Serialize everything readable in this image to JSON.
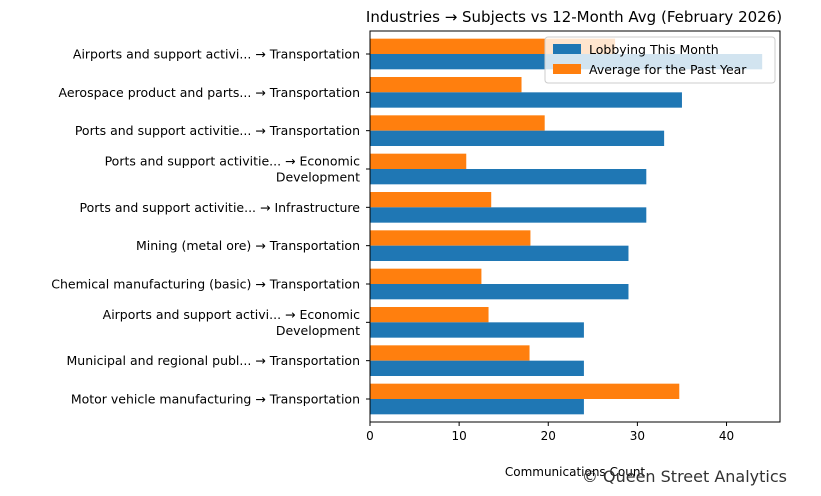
{
  "chart_data": {
    "type": "bar",
    "orientation": "horizontal",
    "title": "Industries → Subjects vs 12-Month Avg (February 2026)",
    "xlabel": "Communications Count",
    "ylabel": "",
    "xlim": [
      0,
      46
    ],
    "xticks": [
      0,
      10,
      20,
      30,
      40
    ],
    "grid": false,
    "legend_position": "top-right",
    "categories": [
      [
        "Airports and support activi... → Transportation"
      ],
      [
        "Aerospace product and parts... → Transportation"
      ],
      [
        "Ports and support activitie... → Transportation"
      ],
      [
        "Ports and support activitie... → Economic",
        "Development"
      ],
      [
        "Ports and support activitie... → Infrastructure"
      ],
      [
        "Mining (metal ore) → Transportation"
      ],
      [
        "Chemical manufacturing (basic) → Transportation"
      ],
      [
        "Airports and support activi... → Economic",
        "Development"
      ],
      [
        "Municipal and regional publ... → Transportation"
      ],
      [
        "Motor vehicle manufacturing → Transportation"
      ]
    ],
    "series": [
      {
        "name": "Lobbying This Month",
        "color": "#1f77b4",
        "values": [
          44,
          35,
          33,
          31,
          31,
          29,
          29,
          24,
          24,
          24
        ]
      },
      {
        "name": "Average for the Past Year",
        "color": "#ff7f0e",
        "values": [
          27.5,
          17,
          19.6,
          10.8,
          13.6,
          18,
          12.5,
          13.3,
          17.9,
          34.7
        ]
      }
    ]
  },
  "watermark": "© Queen Street Analytics"
}
